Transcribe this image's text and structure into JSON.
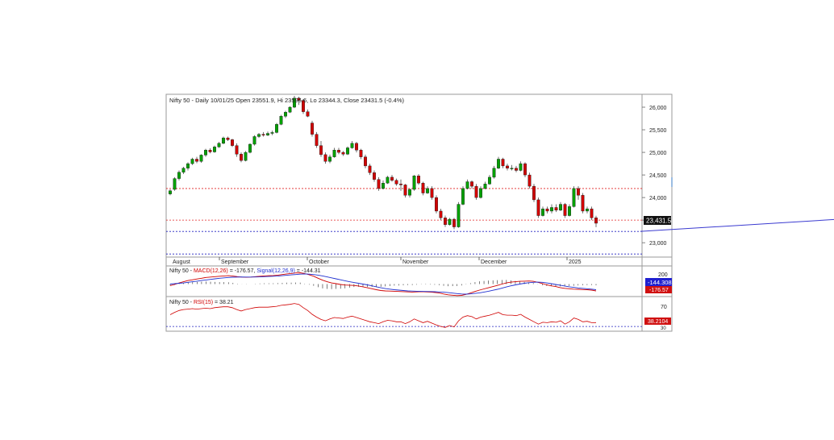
{
  "header": {
    "title": "Nifty 50 - Daily 10/01/25 Open 23551.9, Hi 23596.6, Lo 23344.3, Close 23431.5 (-0.4%)"
  },
  "macd_panel": {
    "prefix": "Nifty 50 - ",
    "macd_label": "MACD(12,26)",
    "macd_value": " = -176.57, ",
    "signal_label": "Signal(12,26,9)",
    "signal_value": " = -144.31",
    "axis_tick": "200",
    "signal_badge": "-144.308",
    "macd_badge": "-176.57"
  },
  "rsi_panel": {
    "prefix": "Nifty 50 - ",
    "rsi_label": "RSI(15)",
    "rsi_value": " = 38.21",
    "axis_tick_top": "70",
    "axis_tick_bottom": "30",
    "rsi_badge": "38.2104"
  },
  "price_badge": "23,431.5",
  "colors": {
    "up": "#00a000",
    "down": "#d00000",
    "macd": "#d00000",
    "signal": "#2030d0",
    "rsi": "#d00000",
    "support_red": "#e02020",
    "support_blue": "#2020c0",
    "trendline": "#3a3ad0"
  },
  "chart_data": [
    {
      "type": "candlestick",
      "title": "Nifty 50 - Daily 10/01/25 Open 23551.9, Hi 23596.6, Lo 23344.3, Close 23431.5 (-0.4%)",
      "month_labels": [
        "August",
        "September",
        "October",
        "November",
        "December",
        "2025"
      ],
      "y_ticks": [
        23000,
        23500,
        24000,
        24500,
        25000,
        25500,
        26000
      ],
      "y_tick_labels": [
        "23,000",
        "23,500",
        "24,000",
        "24,500",
        "25,000",
        "25,500",
        "26,000"
      ],
      "ylim": [
        22700,
        26250
      ],
      "horizontal_levels": [
        {
          "value": 24200,
          "color": "red",
          "style": "dashed"
        },
        {
          "value": 23500,
          "color": "red",
          "style": "dashed"
        },
        {
          "value": 23250,
          "color": "blue",
          "style": "dashed"
        },
        {
          "value": 22750,
          "color": "blue",
          "style": "dashed"
        }
      ],
      "trendline": {
        "from": [
          106,
          23250
        ],
        "to": [
          159,
          23570
        ]
      },
      "last_close": 23431.5,
      "candles": [
        [
          24080,
          24150,
          24050,
          24180
        ],
        [
          24180,
          24420,
          24150,
          24450
        ],
        [
          24420,
          24560,
          24380,
          24600
        ],
        [
          24560,
          24650,
          24520,
          24680
        ],
        [
          24650,
          24750,
          24600,
          24780
        ],
        [
          24750,
          24850,
          24720,
          24880
        ],
        [
          24850,
          24800,
          24760,
          24900
        ],
        [
          24800,
          24940,
          24770,
          24960
        ],
        [
          24940,
          25050,
          24900,
          25080
        ],
        [
          25050,
          25010,
          24980,
          25090
        ],
        [
          25010,
          25120,
          24990,
          25150
        ],
        [
          25120,
          25200,
          25100,
          25230
        ],
        [
          25200,
          25320,
          25180,
          25350
        ],
        [
          25320,
          25280,
          25250,
          25350
        ],
        [
          25280,
          25150,
          25120,
          25300
        ],
        [
          25150,
          24960,
          24900,
          25200
        ],
        [
          24960,
          24820,
          24780,
          25000
        ],
        [
          24820,
          25000,
          24800,
          25030
        ],
        [
          25000,
          25180,
          24980,
          25200
        ],
        [
          25180,
          25350,
          25150,
          25380
        ],
        [
          25350,
          25400,
          25320,
          25430
        ],
        [
          25400,
          25380,
          25350,
          25450
        ],
        [
          25380,
          25420,
          25360,
          25460
        ],
        [
          25420,
          25440,
          25380,
          25480
        ],
        [
          25440,
          25620,
          25420,
          25650
        ],
        [
          25620,
          25800,
          25600,
          25830
        ],
        [
          25800,
          25890,
          25760,
          25920
        ],
        [
          25890,
          26000,
          25870,
          26020
        ],
        [
          26000,
          26200,
          25980,
          26250
        ],
        [
          26200,
          26150,
          26050,
          26230
        ],
        [
          26150,
          25900,
          25850,
          26180
        ],
        [
          25900,
          25800,
          25780,
          25950
        ],
        [
          25650,
          25400,
          25350,
          25700
        ],
        [
          25400,
          25150,
          25100,
          25450
        ],
        [
          25150,
          24950,
          24900,
          25250
        ],
        [
          24950,
          24800,
          24750,
          25000
        ],
        [
          24800,
          24900,
          24760,
          24950
        ],
        [
          24900,
          25050,
          24880,
          25100
        ],
        [
          25050,
          25000,
          24960,
          25100
        ],
        [
          25000,
          24960,
          24920,
          25030
        ],
        [
          24960,
          25100,
          24940,
          25130
        ],
        [
          25100,
          25200,
          25080,
          25250
        ],
        [
          25200,
          25050,
          25000,
          25230
        ],
        [
          25050,
          24900,
          24850,
          25080
        ],
        [
          24900,
          24700,
          24650,
          24950
        ],
        [
          24700,
          24550,
          24500,
          24750
        ],
        [
          24550,
          24400,
          24350,
          24600
        ],
        [
          24400,
          24200,
          24150,
          24450
        ],
        [
          24200,
          24320,
          24180,
          24380
        ],
        [
          24320,
          24450,
          24300,
          24480
        ],
        [
          24450,
          24380,
          24350,
          24500
        ],
        [
          24380,
          24300,
          24260,
          24420
        ],
        [
          24300,
          24280,
          24150,
          24400
        ],
        [
          24280,
          24050,
          24000,
          24300
        ],
        [
          24050,
          24180,
          24000,
          24200
        ],
        [
          24180,
          24480,
          24150,
          24500
        ],
        [
          24480,
          24320,
          24280,
          24520
        ],
        [
          24320,
          24100,
          24050,
          24350
        ],
        [
          24100,
          24200,
          24080,
          24250
        ],
        [
          24200,
          24000,
          23950,
          24250
        ],
        [
          24000,
          23700,
          23650,
          24050
        ],
        [
          23700,
          23550,
          23500,
          23750
        ],
        [
          23550,
          23400,
          23350,
          23600
        ],
        [
          23400,
          23520,
          23380,
          23550
        ],
        [
          23520,
          23350,
          23300,
          23550
        ],
        [
          23350,
          23850,
          23330,
          23900
        ],
        [
          23850,
          24200,
          23830,
          24250
        ],
        [
          24200,
          24350,
          24180,
          24400
        ],
        [
          24350,
          24250,
          24200,
          24380
        ],
        [
          24250,
          24000,
          23950,
          24300
        ],
        [
          24000,
          24200,
          23980,
          24250
        ],
        [
          24200,
          24300,
          24180,
          24350
        ],
        [
          24300,
          24450,
          24280,
          24500
        ],
        [
          24450,
          24650,
          24420,
          24700
        ],
        [
          24650,
          24850,
          24630,
          24900
        ],
        [
          24850,
          24700,
          24650,
          24880
        ],
        [
          24700,
          24650,
          24600,
          24750
        ],
        [
          24650,
          24650,
          24600,
          24720
        ],
        [
          24650,
          24600,
          24560,
          24700
        ],
        [
          24600,
          24750,
          24580,
          24800
        ],
        [
          24750,
          24500,
          24450,
          24780
        ],
        [
          24500,
          24250,
          24200,
          24550
        ],
        [
          24250,
          23950,
          23900,
          24300
        ],
        [
          23950,
          23600,
          23550,
          24000
        ],
        [
          23600,
          23750,
          23580,
          23800
        ],
        [
          23750,
          23700,
          23650,
          23800
        ],
        [
          23700,
          23780,
          23650,
          23850
        ],
        [
          23780,
          23720,
          23680,
          23850
        ],
        [
          23720,
          23850,
          23700,
          23900
        ],
        [
          23850,
          23600,
          23550,
          23880
        ],
        [
          23600,
          23800,
          23580,
          23850
        ],
        [
          23800,
          24200,
          23780,
          24250
        ],
        [
          24200,
          24050,
          23950,
          24250
        ],
        [
          24050,
          23700,
          23650,
          24100
        ],
        [
          23700,
          23750,
          23650,
          23800
        ],
        [
          23750,
          23550,
          23500,
          23800
        ],
        [
          23551.9,
          23431.5,
          23344.3,
          23596.6
        ]
      ]
    },
    {
      "type": "line",
      "title": "Nifty 50 - MACD(12,26) = -176.57, Signal(12,26,9) = -144.31",
      "y_ticks": [
        200
      ],
      "series": [
        {
          "name": "MACD(12,26)",
          "color": "red",
          "values": [
            -40,
            -10,
            30,
            60,
            90,
            110,
            130,
            150,
            170,
            180,
            190,
            200,
            210,
            215,
            205,
            190,
            180,
            175,
            180,
            190,
            200,
            210,
            215,
            220,
            230,
            245,
            260,
            270,
            285,
            290,
            270,
            240,
            200,
            150,
            100,
            60,
            30,
            10,
            -10,
            -25,
            -30,
            -35,
            -50,
            -70,
            -95,
            -120,
            -145,
            -165,
            -175,
            -180,
            -185,
            -190,
            -195,
            -200,
            -205,
            -200,
            -195,
            -200,
            -205,
            -215,
            -230,
            -255,
            -275,
            -285,
            -295,
            -290,
            -265,
            -230,
            -190,
            -155,
            -125,
            -95,
            -65,
            -35,
            0,
            30,
            50,
            60,
            70,
            75,
            78,
            70,
            45,
            15,
            -20,
            -45,
            -65,
            -90,
            -110,
            -120,
            -130,
            -135,
            -140,
            -145,
            -155,
            -176.57
          ]
        },
        {
          "name": "Signal(12,26,9)",
          "color": "blue",
          "values": [
            0,
            10,
            20,
            30,
            45,
            60,
            75,
            90,
            105,
            120,
            135,
            150,
            160,
            170,
            175,
            180,
            182,
            180,
            180,
            182,
            185,
            190,
            195,
            200,
            205,
            215,
            225,
            235,
            245,
            255,
            260,
            255,
            245,
            230,
            210,
            185,
            160,
            135,
            110,
            85,
            60,
            40,
            20,
            0,
            -20,
            -45,
            -70,
            -95,
            -115,
            -130,
            -145,
            -155,
            -165,
            -175,
            -180,
            -185,
            -188,
            -190,
            -193,
            -197,
            -202,
            -210,
            -220,
            -232,
            -245,
            -255,
            -258,
            -252,
            -240,
            -225,
            -205,
            -185,
            -160,
            -135,
            -105,
            -75,
            -45,
            -20,
            0,
            20,
            35,
            45,
            50,
            45,
            30,
            10,
            -10,
            -30,
            -50,
            -70,
            -85,
            -100,
            -110,
            -120,
            -130,
            -144.31
          ]
        }
      ]
    },
    {
      "type": "line",
      "title": "Nifty 50 - RSI(15) = 38.21",
      "y_ticks": [
        30,
        70
      ],
      "series": [
        {
          "name": "RSI(15)",
          "color": "red",
          "values": [
            55,
            60,
            64,
            66,
            67,
            68,
            67,
            68,
            69,
            68,
            70,
            71,
            72,
            72,
            70,
            66,
            63,
            66,
            68,
            70,
            71,
            71,
            71,
            72,
            73,
            75,
            76,
            77,
            79,
            77,
            70,
            64,
            56,
            50,
            45,
            42,
            46,
            49,
            48,
            47,
            50,
            52,
            49,
            46,
            43,
            40,
            38,
            36,
            40,
            43,
            42,
            40,
            40,
            36,
            40,
            46,
            42,
            38,
            41,
            37,
            33,
            30,
            28,
            32,
            29,
            42,
            50,
            53,
            51,
            46,
            50,
            52,
            54,
            57,
            60,
            55,
            54,
            54,
            53,
            56,
            50,
            45,
            40,
            35,
            39,
            38,
            40,
            39,
            42,
            35,
            40,
            48,
            45,
            40,
            41,
            38,
            38.21
          ]
        }
      ]
    }
  ]
}
